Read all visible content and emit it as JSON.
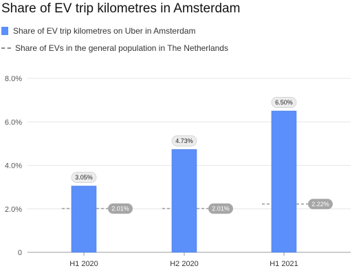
{
  "chart_data": {
    "type": "bar",
    "title": "Share of EV trip kilometres in Amsterdam",
    "categories": [
      "H1 2020",
      "H2 2020",
      "H1 2021"
    ],
    "series": [
      {
        "name": "Share of EV trip kilometres on Uber in Amsterdam",
        "type": "bar",
        "color": "#5b8ff9",
        "values": [
          3.05,
          4.73,
          6.5
        ],
        "labels": [
          "3.05%",
          "4.73%",
          "6.50%"
        ]
      },
      {
        "name": "Share of EVs in the general population in The Netherlands",
        "type": "reference-line",
        "style": "dashed",
        "color": "#9a9a9a",
        "values": [
          2.01,
          2.01,
          2.22
        ],
        "labels": [
          "2.01%",
          "2.01%",
          "2.22%"
        ]
      }
    ],
    "yticks": [
      0,
      2,
      4,
      6,
      8
    ],
    "ytick_labels": [
      "0",
      "2.0%",
      "4.0%",
      "6.0%",
      "8.0%"
    ],
    "ylim": [
      0,
      8
    ],
    "grid": true,
    "legend_position": "top-left"
  }
}
